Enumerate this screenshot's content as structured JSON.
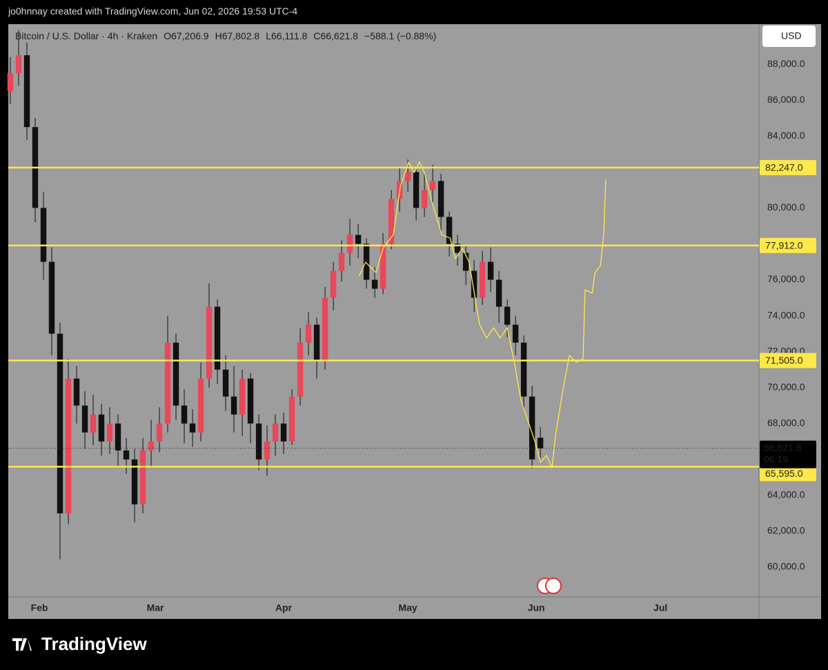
{
  "header": {
    "credit": "jo0hnnay created with TradingView.com, Jun 02, 2026 19:53 UTC-4"
  },
  "footer": {
    "brand": "TradingView"
  },
  "chart_data": {
    "type": "candlestick",
    "title": "Bitcoin / U.S. Dollar · 4h · Kraken",
    "ohlc_legend": [
      "O67,206.9",
      "H67,802.8",
      "L66,111.8",
      "C66,621.8",
      "−588.1 (−0.88%)"
    ],
    "currency": "USD",
    "x": [
      24,
      26,
      28,
      30,
      32,
      34,
      36,
      38,
      40,
      42,
      44,
      46,
      48,
      50,
      52,
      54,
      56,
      58,
      60,
      62,
      64,
      66,
      68,
      70,
      72,
      74,
      76,
      78,
      80,
      82,
      84,
      86,
      88,
      90,
      92,
      94,
      96,
      98,
      100,
      102,
      104,
      106,
      108,
      110,
      112,
      114,
      116,
      118,
      120,
      122,
      124,
      126,
      128,
      130,
      132,
      134,
      136,
      138,
      140,
      142,
      144,
      146,
      148,
      150,
      152
    ],
    "open": [
      86500,
      87500,
      88500,
      84500,
      80000,
      77000,
      73000,
      63000,
      70500,
      69000,
      67500,
      68500,
      67000,
      68000,
      66500,
      66000,
      63500,
      66500,
      67000,
      68000,
      72500,
      69000,
      68000,
      67500,
      70500,
      74500,
      71000,
      69500,
      68500,
      70500,
      68000,
      66000,
      67000,
      68000,
      67000,
      69500,
      72500,
      73500,
      71500,
      75000,
      76500,
      77500,
      78500,
      78000,
      76000,
      75500,
      78000,
      80500,
      81500,
      82000,
      80000,
      81000,
      81500,
      79500,
      78000,
      77500,
      76500,
      75000,
      77000,
      76000,
      74500,
      73500,
      72500,
      69500,
      67206.9
    ],
    "high": [
      88400,
      89900,
      89200,
      85000,
      80900,
      77800,
      73600,
      71600,
      71200,
      69800,
      69600,
      69100,
      68900,
      68500,
      67200,
      66600,
      67200,
      68200,
      68900,
      74000,
      73000,
      69900,
      68800,
      71400,
      75800,
      74900,
      71800,
      71200,
      71000,
      70800,
      68500,
      67900,
      68500,
      68600,
      69900,
      73300,
      74200,
      73900,
      75600,
      77000,
      78200,
      79400,
      79100,
      78300,
      76700,
      78600,
      81000,
      82300,
      82700,
      82300,
      82000,
      82400,
      81900,
      79800,
      78500,
      77900,
      77100,
      77600,
      77800,
      76500,
      74900,
      74000,
      72900,
      70100,
      67802.8
    ],
    "low": [
      85800,
      86800,
      83800,
      79200,
      76000,
      71800,
      60440,
      62400,
      68000,
      66600,
      66800,
      66200,
      66300,
      65600,
      65200,
      62500,
      63000,
      65600,
      66400,
      67500,
      68200,
      66900,
      66700,
      67000,
      70000,
      70200,
      68700,
      67500,
      67300,
      66900,
      65400,
      65100,
      66200,
      66300,
      66800,
      69000,
      71800,
      70500,
      71000,
      74300,
      75900,
      76800,
      77200,
      75500,
      75000,
      75200,
      77700,
      79800,
      80900,
      79300,
      79500,
      80300,
      78700,
      77300,
      76800,
      75700,
      74200,
      74600,
      75300,
      73600,
      72800,
      71800,
      68800,
      65500,
      66111.8
    ],
    "close": [
      87500,
      88500,
      84500,
      80000,
      77000,
      73000,
      63000,
      70500,
      69000,
      67500,
      68500,
      67000,
      68000,
      66500,
      66000,
      63500,
      66500,
      67000,
      68000,
      72500,
      69000,
      68000,
      67500,
      70500,
      74500,
      71000,
      69500,
      68500,
      70500,
      68000,
      66000,
      67000,
      68000,
      67000,
      69500,
      72500,
      73500,
      71500,
      75000,
      76500,
      77500,
      78500,
      78000,
      76000,
      75500,
      78000,
      80500,
      81500,
      82000,
      80000,
      81000,
      81500,
      79500,
      78000,
      77500,
      76500,
      75000,
      77000,
      76000,
      74500,
      73500,
      72500,
      69500,
      66000,
      66621.8
    ],
    "up_color": "#e8485a",
    "down_color": "#111111",
    "last_price": {
      "value": 66621.8,
      "label": "66,621.8",
      "countdown": "06:19"
    },
    "levels": [
      {
        "value": 82247,
        "label": "82,247.0"
      },
      {
        "value": 77912,
        "label": "77,912.0"
      },
      {
        "value": 71505,
        "label": "71,505.0"
      },
      {
        "value": 65595,
        "label": "65,595.0"
      }
    ],
    "level_color": "#ffe84a",
    "projection": {
      "color": "#ffe84a",
      "x": [
        108.2,
        109.8,
        112.3,
        114,
        116.5,
        118.2,
        120.2,
        121.5,
        122.8,
        124,
        125.7,
        128.2,
        130.2,
        131.5,
        133.2,
        134.8,
        137.3,
        139,
        140.7,
        142.3,
        144,
        145.7,
        147.3,
        149,
        150.7,
        152,
        153.5,
        154.8,
        155.7,
        157.3,
        159,
        160.7,
        162.3,
        162.8,
        164.5,
        165.2,
        166.5,
        167.3,
        167.8
      ],
      "values": [
        76200,
        76980,
        76400,
        77750,
        78510,
        81200,
        82550,
        81970,
        82550,
        81970,
        80430,
        78510,
        78320,
        77170,
        77750,
        76980,
        73520,
        72750,
        73330,
        72750,
        73330,
        71410,
        69300,
        68140,
        66990,
        65840,
        66220,
        65530,
        67380,
        69680,
        71790,
        71410,
        71600,
        75440,
        75250,
        76400,
        76790,
        78510,
        81590
      ]
    },
    "xlim": [
      23.5,
      204.8
    ],
    "xticks": [
      {
        "value": 31,
        "label": "Feb"
      },
      {
        "value": 59,
        "label": "Mar"
      },
      {
        "value": 90,
        "label": "Apr"
      },
      {
        "value": 120,
        "label": "May"
      },
      {
        "value": 151,
        "label": "Jun"
      },
      {
        "value": 181,
        "label": "Jul"
      }
    ],
    "ylim": [
      58350,
      90230
    ],
    "yticks": [
      {
        "value": 60000,
        "label": "60,000.0"
      },
      {
        "value": 62000,
        "label": "62,000.0"
      },
      {
        "value": 64000,
        "label": "64,000.0"
      },
      {
        "value": 68000,
        "label": "68,000.0"
      },
      {
        "value": 70000,
        "label": "70,000.0"
      },
      {
        "value": 72000,
        "label": "72,000.0"
      },
      {
        "value": 74000,
        "label": "74,000.0"
      },
      {
        "value": 76000,
        "label": "76,000.0"
      },
      {
        "value": 80000,
        "label": "80,000.0"
      },
      {
        "value": 84000,
        "label": "84,000.0"
      },
      {
        "value": 86000,
        "label": "86,000.0"
      },
      {
        "value": 88000,
        "label": "88,000.0"
      }
    ]
  }
}
